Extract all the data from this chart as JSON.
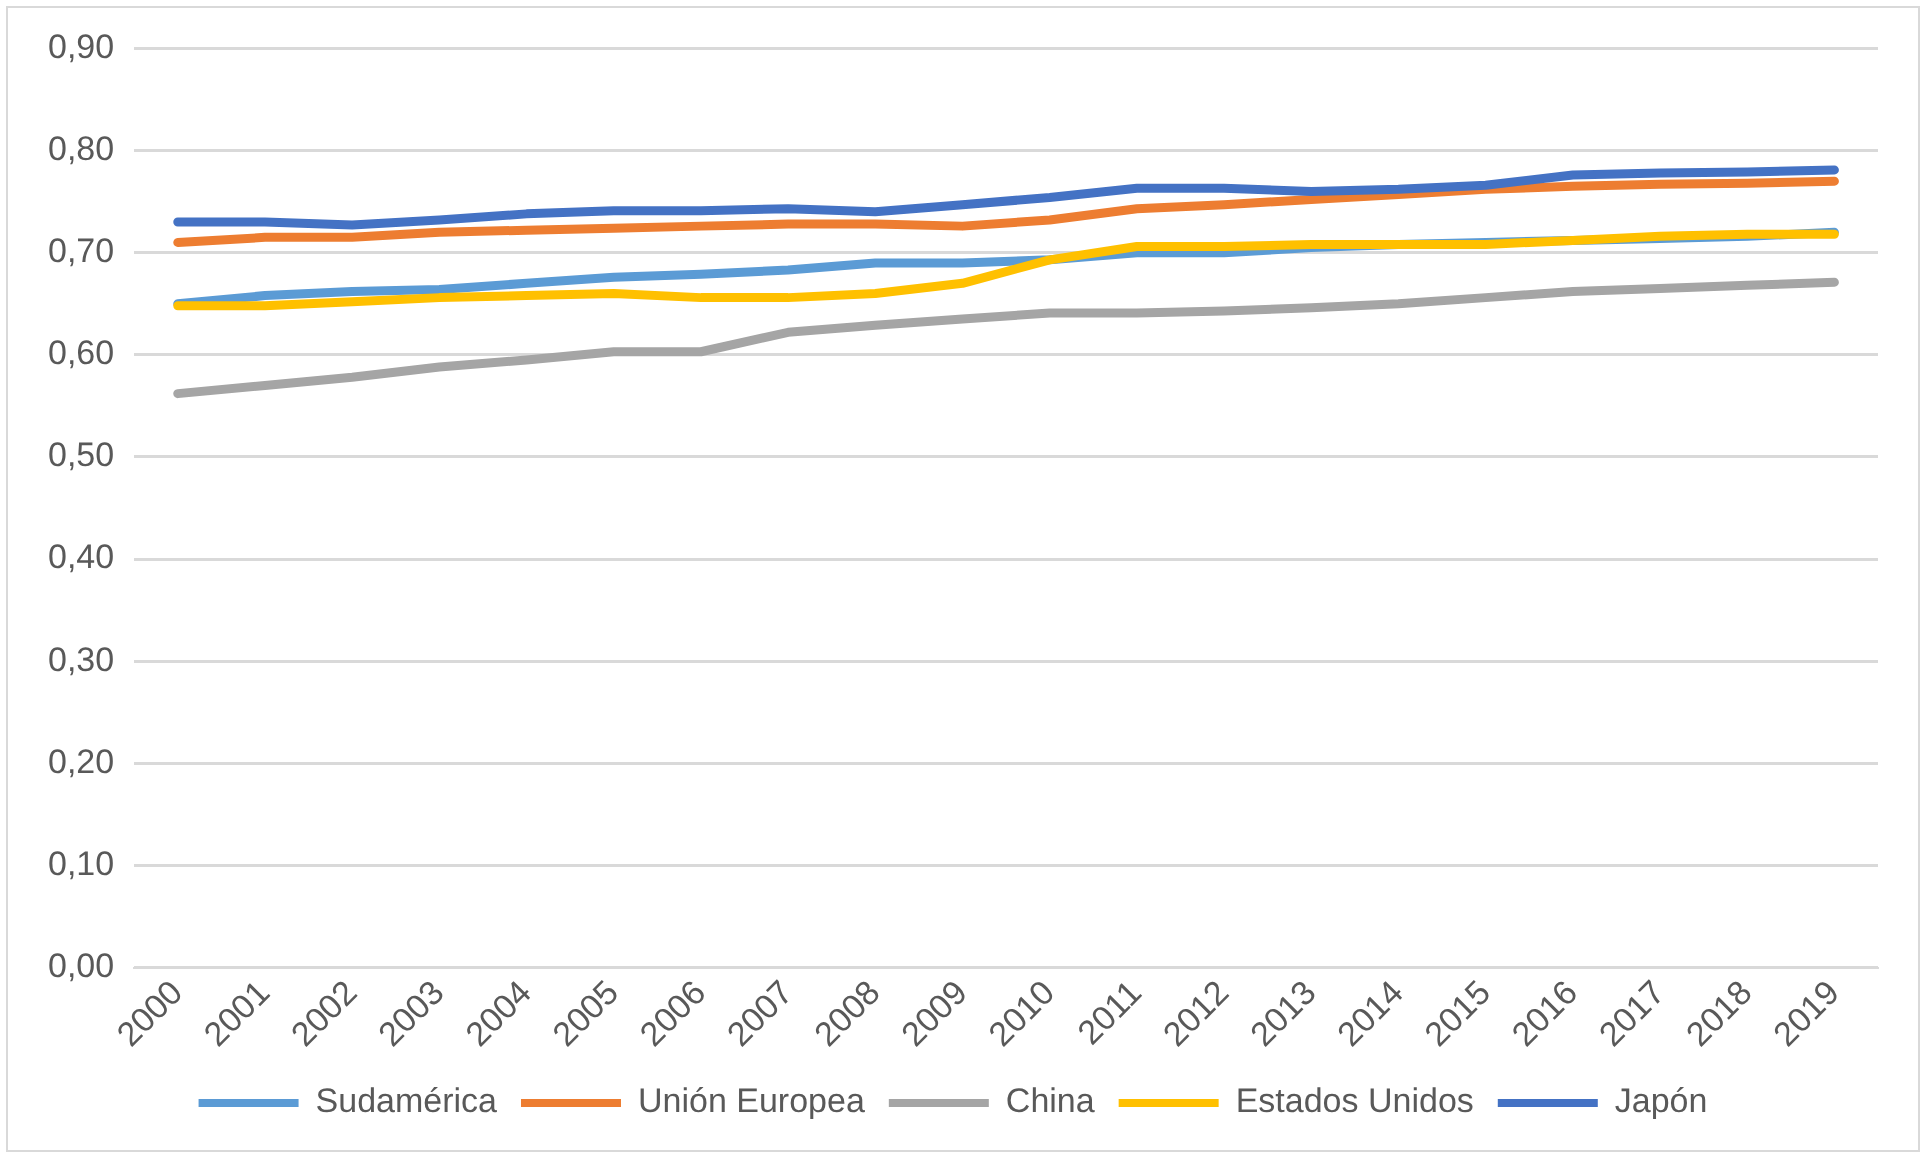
{
  "chart_data": {
    "type": "line",
    "categories": [
      "2000",
      "2001",
      "2002",
      "2003",
      "2004",
      "2005",
      "2006",
      "2007",
      "2008",
      "2009",
      "2010",
      "2011",
      "2012",
      "2013",
      "2014",
      "2015",
      "2016",
      "2017",
      "2018",
      "2019"
    ],
    "series": [
      {
        "name": "Sudamérica",
        "color": "#5b9bd5",
        "values": [
          0.65,
          0.658,
          0.662,
          0.664,
          0.67,
          0.676,
          0.679,
          0.683,
          0.69,
          0.69,
          0.693,
          0.7,
          0.7,
          0.705,
          0.708,
          0.71,
          0.712,
          0.714,
          0.716,
          0.72
        ]
      },
      {
        "name": "Unión Europea",
        "color": "#ed7d31",
        "values": [
          0.71,
          0.715,
          0.715,
          0.72,
          0.722,
          0.724,
          0.726,
          0.728,
          0.728,
          0.726,
          0.732,
          0.743,
          0.747,
          0.752,
          0.757,
          0.762,
          0.765,
          0.767,
          0.768,
          0.77
        ]
      },
      {
        "name": "China",
        "color": "#a5a5a5",
        "values": [
          0.562,
          0.57,
          0.578,
          0.588,
          0.595,
          0.603,
          0.603,
          0.622,
          0.629,
          0.635,
          0.641,
          0.641,
          0.643,
          0.646,
          0.65,
          0.656,
          0.662,
          0.665,
          0.668,
          0.671
        ]
      },
      {
        "name": "Estados Unidos",
        "color": "#ffc000",
        "values": [
          0.648,
          0.648,
          0.652,
          0.656,
          0.658,
          0.66,
          0.656,
          0.656,
          0.66,
          0.67,
          0.693,
          0.706,
          0.706,
          0.708,
          0.708,
          0.708,
          0.712,
          0.716,
          0.718,
          0.718
        ]
      },
      {
        "name": "Japón",
        "color": "#4472c4",
        "values": [
          0.73,
          0.73,
          0.727,
          0.732,
          0.738,
          0.741,
          0.741,
          0.743,
          0.74,
          0.747,
          0.754,
          0.763,
          0.763,
          0.76,
          0.762,
          0.766,
          0.776,
          0.778,
          0.779,
          0.781
        ]
      }
    ],
    "ylim": [
      0,
      0.9
    ],
    "yticks": [
      {
        "value": 0,
        "label": "0,00"
      },
      {
        "value": 0.1,
        "label": "0,10"
      },
      {
        "value": 0.2,
        "label": "0,20"
      },
      {
        "value": 0.3,
        "label": "0,30"
      },
      {
        "value": 0.4,
        "label": "0,40"
      },
      {
        "value": 0.5,
        "label": "0,50"
      },
      {
        "value": 0.6,
        "label": "0,60"
      },
      {
        "value": 0.7,
        "label": "0,70"
      },
      {
        "value": 0.8,
        "label": "0,80"
      },
      {
        "value": 0.9,
        "label": "0,90"
      }
    ],
    "grid": "y",
    "legend": "bottom",
    "marker": "none",
    "line_style": "solid"
  }
}
